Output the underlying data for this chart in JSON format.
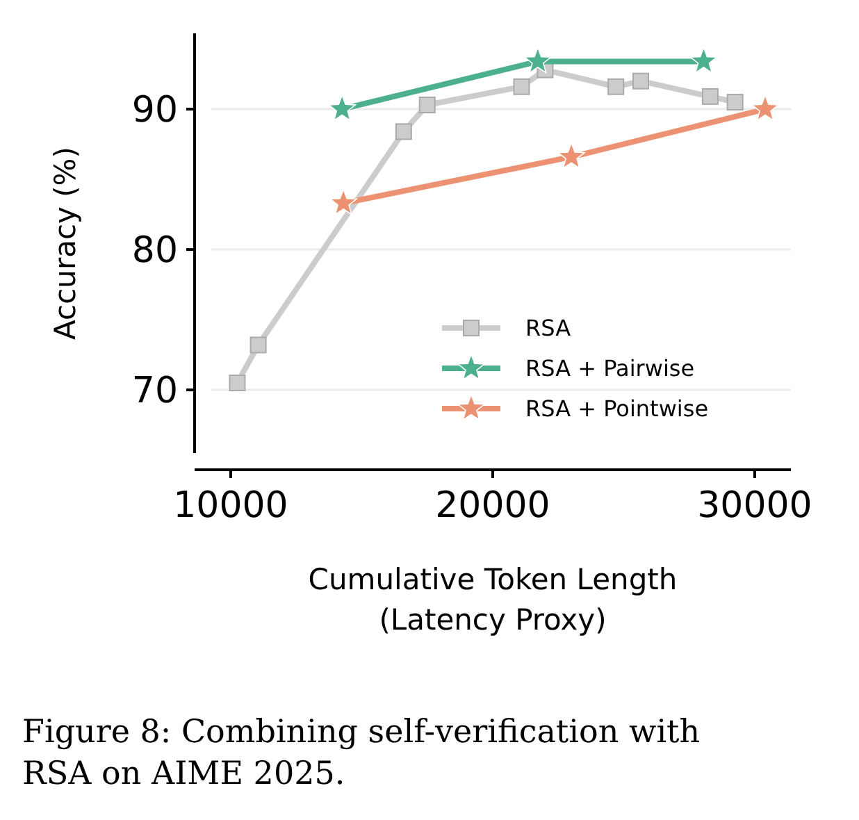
{
  "chart_data": {
    "type": "line",
    "xlabel": "Cumulative Token Length\n(Latency Proxy)",
    "ylabel": "Accuracy (%)",
    "xlim": [
      8620,
      31380
    ],
    "xticks": [
      10000,
      20000,
      30000
    ],
    "ylim": [
      65.5,
      95.4
    ],
    "yticks": [
      70,
      80,
      90
    ],
    "grid": "y",
    "legend": "bottom right",
    "line_style": "solid",
    "series": [
      {
        "name": "RSA",
        "color": "#cccccc",
        "marker": "square",
        "x": [
          10250,
          11050,
          16600,
          17500,
          21100,
          22000,
          24700,
          25650,
          28300,
          29250
        ],
        "values": [
          70.5,
          73.2,
          88.4,
          90.3,
          91.6,
          92.8,
          91.6,
          92.0,
          90.9,
          90.5
        ]
      },
      {
        "name": "RSA + Pairwise",
        "color": "#4caf8e",
        "marker": "star",
        "x": [
          14250,
          21720,
          28050
        ],
        "values": [
          90.0,
          93.4,
          93.4
        ]
      },
      {
        "name": "RSA + Pointwise",
        "color": "#ec9272",
        "marker": "star",
        "x": [
          14300,
          23000,
          30400
        ],
        "values": [
          83.3,
          86.6,
          90.0
        ]
      }
    ],
    "annotations": [
      "Figure 8: Combining self-verification with RSA on AIME 2025."
    ]
  }
}
